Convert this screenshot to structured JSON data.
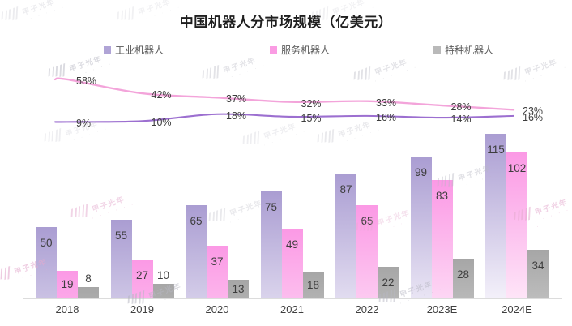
{
  "title": "中国机器人分市场规模（亿美元）",
  "legend": [
    {
      "label": "工业机器人",
      "color": "#b0a4d6"
    },
    {
      "label": "服务机器人",
      "color": "#fa9ce3"
    },
    {
      "label": "特种机器人",
      "color": "#b9b9b9"
    }
  ],
  "watermark": {
    "text": "甲子光年"
  },
  "colors": {
    "industrial_bar_top": "#aa9dd2",
    "industrial_bar_bottom": "#f4f1fa",
    "service_bar_top": "#fb99e5",
    "service_bar_bottom": "#feeffa",
    "special_bar_top": "#a6a6a6",
    "special_bar_bottom": "#f2f2f2",
    "service_growth_line": "#f3a4da",
    "industrial_growth_line": "#9c6fd0",
    "label_text": "#3d3d3d",
    "axis_line": "#dcdcdc"
  },
  "chart_data": {
    "type": "bar",
    "title": "中国机器人分市场规模（亿美元）",
    "unit": "亿美元",
    "legend_position": "top",
    "grid": false,
    "categories": [
      "2018",
      "2019",
      "2020",
      "2021",
      "2022",
      "2023E",
      "2024E"
    ],
    "series": [
      {
        "name": "工业机器人",
        "type": "bar",
        "values": [
          50,
          55,
          65,
          75,
          87,
          99,
          115
        ]
      },
      {
        "name": "服务机器人",
        "type": "bar",
        "values": [
          19,
          27,
          37,
          49,
          65,
          83,
          102
        ]
      },
      {
        "name": "特种机器人",
        "type": "bar",
        "values": [
          8,
          10,
          13,
          18,
          22,
          28,
          34
        ]
      }
    ],
    "line_series": [
      {
        "name": "pink-growth-line",
        "values_pct": [
          58,
          42,
          37,
          32,
          33,
          28,
          23
        ]
      },
      {
        "name": "purple-growth-line",
        "values_pct": [
          9,
          10,
          18,
          15,
          16,
          14,
          16
        ]
      }
    ],
    "bar_value_labels_shown": true,
    "pct_label_suffix": "%"
  }
}
